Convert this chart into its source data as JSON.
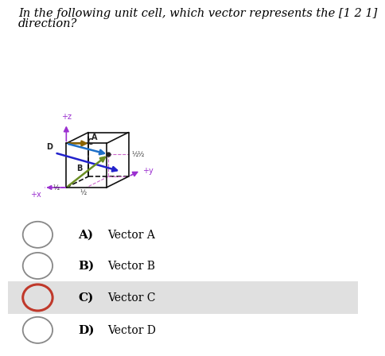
{
  "title_line1": "In the following unit cell, which vector represents the [1 2 1]",
  "title_line2": "direction?",
  "title_fontsize": 10.5,
  "bg_color": "#ffffff",
  "selected_option": "C",
  "options": [
    "A)  Vector A",
    "B)  Vector B",
    "C)  Vector C",
    "D)  Vector D"
  ],
  "selected_bg": "#e0e0e0",
  "selected_circle_color": "#c0392b",
  "unselected_circle_color": "#888888",
  "cube_color": "#111111",
  "axis_color": "#9b30d0",
  "vector_A_color": "#8B6400",
  "vector_B_color": "#6B8E23",
  "vector_C_color": "#1e70c8",
  "vector_D_color": "#2222cc",
  "dashed_color": "#cc66cc"
}
